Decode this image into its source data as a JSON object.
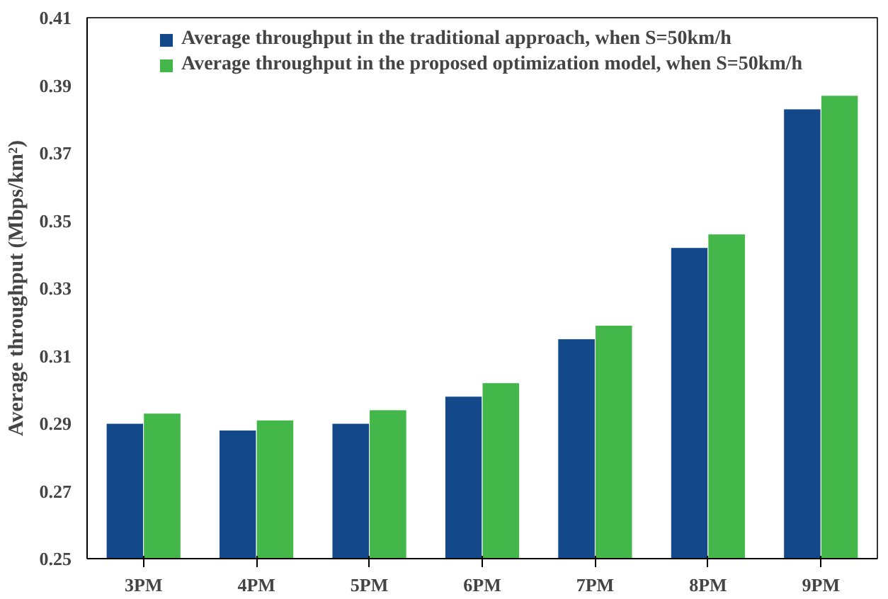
{
  "chart_data": {
    "type": "bar",
    "ylabel": "Average throughput (Mbps/km²)",
    "categories": [
      "3PM",
      "4PM",
      "5PM",
      "6PM",
      "7PM",
      "8PM",
      "9PM"
    ],
    "series": [
      {
        "name": "Average throughput in the traditional approach, when S=50km/h",
        "color": "#13488a",
        "values": [
          0.29,
          0.288,
          0.29,
          0.298,
          0.315,
          0.342,
          0.383
        ]
      },
      {
        "name": "Average throughput in the proposed optimization model, when S=50km/h",
        "color": "#44b74a",
        "values": [
          0.293,
          0.291,
          0.294,
          0.302,
          0.319,
          0.346,
          0.387
        ]
      }
    ],
    "ylim": [
      0.25,
      0.41
    ],
    "yticks": [
      0.25,
      0.27,
      0.29,
      0.31,
      0.33,
      0.35,
      0.37,
      0.39,
      0.41
    ],
    "grid": false,
    "legend": "top left"
  }
}
